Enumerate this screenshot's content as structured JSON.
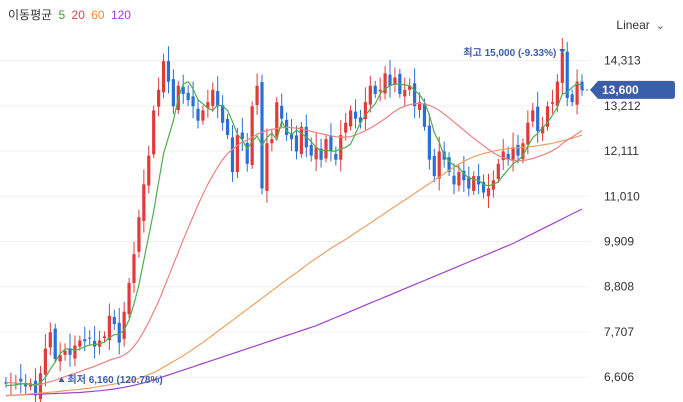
{
  "legend": {
    "label": "이동평균",
    "ma": [
      {
        "period": "5",
        "color": "#3a9f3a"
      },
      {
        "period": "20",
        "color": "#e04848"
      },
      {
        "period": "60",
        "color": "#f08a3c"
      },
      {
        "period": "120",
        "color": "#a040d0"
      }
    ]
  },
  "scale_label": "Linear",
  "chart_data": {
    "type": "candlestick",
    "y_ticks": [
      "14,313",
      "13,212",
      "12,111",
      "11,010",
      "9,909",
      "8,808",
      "7,707",
      "6,606"
    ],
    "ylim": [
      6100,
      15300
    ],
    "current_price": "13,600",
    "current_value": 13600,
    "high_note": {
      "label": "최고",
      "value": "15,000 (-9.33%)",
      "index": 113
    },
    "low_note": {
      "label": "최저",
      "value": "6,160 (120.78%)",
      "index": 6
    },
    "closes": [
      6450,
      6420,
      6480,
      6500,
      6380,
      6460,
      6160,
      6700,
      7300,
      7700,
      7050,
      7150,
      7250,
      7150,
      7380,
      7500,
      7480,
      7550,
      7350,
      7500,
      7600,
      8100,
      7900,
      7450,
      8200,
      8900,
      9600,
      10500,
      11300,
      12000,
      13100,
      13600,
      14300,
      13800,
      13200,
      13700,
      13500,
      13350,
      13200,
      12850,
      13100,
      13300,
      13600,
      13200,
      12800,
      12500,
      11600,
      12500,
      12400,
      11800,
      13200,
      13700,
      11200,
      12300,
      12400,
      13300,
      12900,
      12500,
      12400,
      12100,
      12700,
      12200,
      12000,
      12200,
      11900,
      12400,
      12100,
      11900,
      12500,
      12800,
      13100,
      12900,
      12800,
      13300,
      13700,
      13500,
      13600,
      14000,
      13700,
      13900,
      13500,
      13600,
      13700,
      13200,
      13300,
      12700,
      11900,
      11500,
      12100,
      11900,
      11600,
      11300,
      11600,
      11400,
      11200,
      11500,
      11300,
      11100,
      11200,
      11400,
      11800,
      12100,
      11900,
      12200,
      12000,
      12300,
      12800,
      13100,
      12600,
      12700,
      13200,
      13300,
      13800,
      14500,
      13400,
      13300,
      13800,
      13600
    ],
    "ma5": [
      6400,
      6410,
      6420,
      6440,
      6450,
      6440,
      6400,
      6480,
      6600,
      6800,
      6980,
      7180,
      7290,
      7300,
      7260,
      7290,
      7350,
      7390,
      7400,
      7420,
      7460,
      7570,
      7640,
      7650,
      7760,
      8000,
      8390,
      8850,
      9450,
      10050,
      10650,
      11350,
      12040,
      12450,
      12850,
      13400,
      13740,
      13800,
      13620,
      13360,
      13260,
      13150,
      13100,
      13230,
      13210,
      13100,
      12820,
      12520,
      12380,
      12160,
      12340,
      12480,
      12250,
      12440,
      12550,
      12380,
      12850,
      12600,
      12510,
      12620,
      12540,
      12450,
      12340,
      12200,
      12120,
      12130,
      12110,
      12110,
      12160,
      12200,
      12280,
      12540,
      12800,
      12980,
      13130,
      13260,
      13500,
      13620,
      13700,
      13740,
      13740,
      13720,
      13700,
      13590,
      13490,
      13300,
      12980,
      12560,
      12320,
      12000,
      11860,
      11760,
      11710,
      11560,
      11460,
      11420,
      11400,
      11300,
      11260,
      11300,
      11360,
      11520,
      11660,
      11800,
      11880,
      12000,
      12220,
      12440,
      12540,
      12680,
      12800,
      12980,
      13180,
      13500,
      13540,
      13660,
      13760,
      13700
    ],
    "ma20": [
      6480,
      6470,
      6460,
      6450,
      6440,
      6430,
      6420,
      6430,
      6460,
      6500,
      6530,
      6580,
      6620,
      6660,
      6700,
      6740,
      6790,
      6830,
      6870,
      6920,
      6970,
      7020,
      7060,
      7090,
      7150,
      7230,
      7360,
      7520,
      7720,
      7950,
      8200,
      8450,
      8750,
      9050,
      9350,
      9650,
      9950,
      10240,
      10520,
      10800,
      11050,
      11300,
      11520,
      11720,
      11900,
      12050,
      12150,
      12250,
      12330,
      12380,
      12450,
      12520,
      12570,
      12610,
      12640,
      12660,
      12680,
      12690,
      12680,
      12670,
      12650,
      12620,
      12590,
      12560,
      12530,
      12510,
      12480,
      12460,
      12450,
      12450,
      12460,
      12500,
      12550,
      12610,
      12670,
      12740,
      12820,
      12900,
      12990,
      13080,
      13150,
      13200,
      13240,
      13260,
      13270,
      13250,
      13220,
      13170,
      13100,
      13010,
      12920,
      12820,
      12720,
      12620,
      12520,
      12420,
      12330,
      12240,
      12150,
      12070,
      12000,
      11950,
      11910,
      11880,
      11870,
      11880,
      11900,
      11930,
      11970,
      12010,
      12060,
      12120,
      12190,
      12290,
      12380,
      12450,
      12530,
      12610
    ],
    "ma60": [
      6150,
      6160,
      6170,
      6180,
      6190,
      6200,
      6210,
      6220,
      6230,
      6240,
      6250,
      6260,
      6280,
      6290,
      6300,
      6310,
      6330,
      6340,
      6360,
      6380,
      6400,
      6420,
      6440,
      6460,
      6480,
      6510,
      6540,
      6580,
      6620,
      6670,
      6720,
      6780,
      6850,
      6920,
      6990,
      7060,
      7130,
      7210,
      7290,
      7370,
      7450,
      7540,
      7630,
      7720,
      7810,
      7900,
      7990,
      8080,
      8170,
      8260,
      8350,
      8440,
      8530,
      8620,
      8710,
      8800,
      8890,
      8980,
      9070,
      9150,
      9240,
      9330,
      9420,
      9500,
      9580,
      9660,
      9740,
      9820,
      9890,
      9960,
      10040,
      10120,
      10200,
      10280,
      10360,
      10440,
      10520,
      10600,
      10680,
      10760,
      10840,
      10920,
      11000,
      11080,
      11160,
      11240,
      11320,
      11400,
      11480,
      11560,
      11640,
      11720,
      11790,
      11860,
      11920,
      11970,
      12010,
      12050,
      12080,
      12110,
      12130,
      12150,
      12170,
      12180,
      12190,
      12200,
      12210,
      12220,
      12240,
      12260,
      12280,
      12300,
      12330,
      12360,
      12390,
      12420,
      12460,
      12500
    ],
    "ma120": [
      6160,
      6165,
      6170,
      6175,
      6180,
      6185,
      6190,
      6195,
      6200,
      6205,
      6210,
      6215,
      6220,
      6225,
      6230,
      6235,
      6245,
      6255,
      6265,
      6275,
      6290,
      6305,
      6320,
      6340,
      6360,
      6385,
      6410,
      6440,
      6470,
      6500,
      6540,
      6580,
      6620,
      6660,
      6700,
      6740,
      6780,
      6820,
      6860,
      6900,
      6940,
      6980,
      7020,
      7060,
      7100,
      7140,
      7180,
      7220,
      7260,
      7300,
      7340,
      7380,
      7420,
      7460,
      7500,
      7540,
      7580,
      7620,
      7660,
      7700,
      7740,
      7780,
      7820,
      7860,
      7910,
      7960,
      8010,
      8060,
      8110,
      8160,
      8210,
      8260,
      8310,
      8360,
      8410,
      8460,
      8510,
      8560,
      8610,
      8660,
      8710,
      8760,
      8810,
      8860,
      8910,
      8960,
      9010,
      9060,
      9110,
      9160,
      9210,
      9260,
      9310,
      9360,
      9410,
      9460,
      9510,
      9560,
      9610,
      9660,
      9710,
      9760,
      9810,
      9860,
      9920,
      9980,
      10040,
      10100,
      10160,
      10220,
      10280,
      10340,
      10400,
      10460,
      10520,
      10580,
      10640,
      10700
    ]
  }
}
